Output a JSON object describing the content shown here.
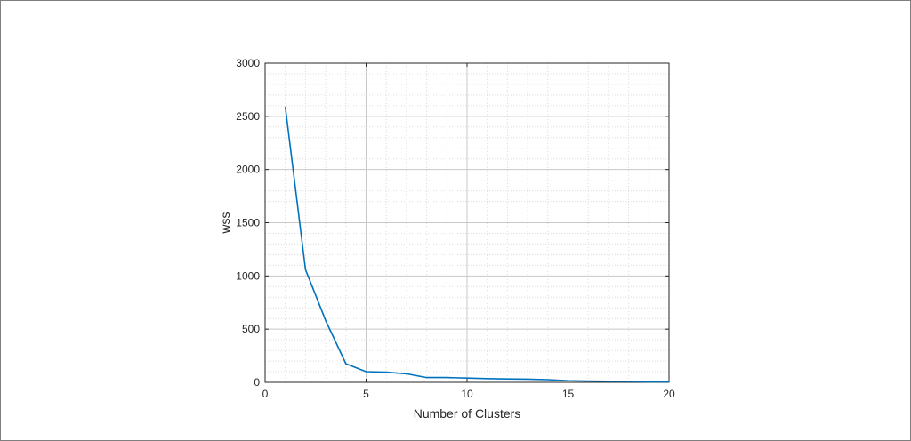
{
  "chart_data": {
    "type": "line",
    "title": "",
    "xlabel": "Number of Clusters",
    "ylabel": "wss",
    "xlim": [
      0,
      20
    ],
    "ylim": [
      0,
      3000
    ],
    "xticks": [
      0,
      5,
      10,
      15,
      20
    ],
    "yticks": [
      0,
      500,
      1000,
      1500,
      2000,
      2500,
      3000
    ],
    "grid": true,
    "minor_grid": true,
    "series": [
      {
        "color": "#0072bd",
        "x": [
          1,
          2,
          3,
          4,
          5,
          6,
          7,
          8,
          9,
          10,
          11,
          12,
          13,
          14,
          15,
          16,
          17,
          18,
          19,
          20
        ],
        "values": [
          2590,
          1060,
          580,
          175,
          100,
          95,
          80,
          45,
          45,
          40,
          35,
          32,
          30,
          25,
          15,
          12,
          10,
          8,
          5,
          5
        ]
      }
    ]
  }
}
